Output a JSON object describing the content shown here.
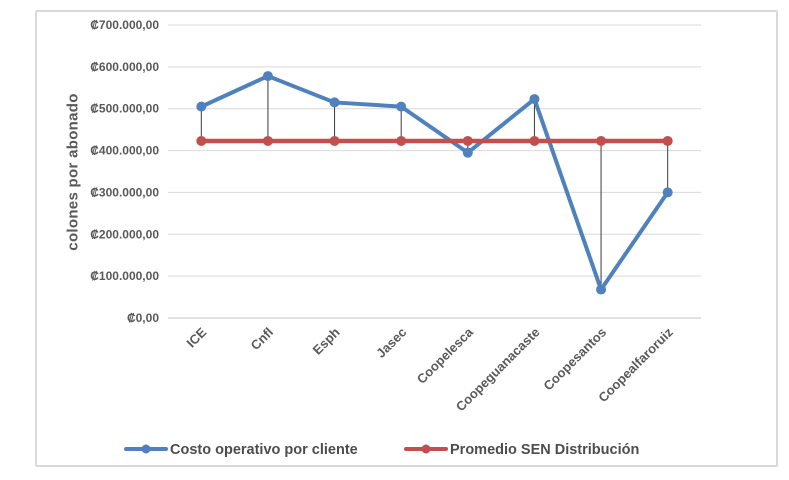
{
  "chart_data": {
    "type": "line",
    "title": "",
    "xlabel": "",
    "ylabel": "colones por abonado",
    "categories": [
      "ICE",
      "Cnfl",
      "Esph",
      "Jasec",
      "Coopelesca",
      "Coopeguanacaste",
      "Coopesantos",
      "Coopealfaroruiz"
    ],
    "series": [
      {
        "name": "Costo operativo por cliente",
        "color": "#4F81BD",
        "values": [
          505000,
          578000,
          515000,
          505000,
          395000,
          523000,
          68000,
          300000
        ]
      },
      {
        "name": "Promedio SEN Distribución",
        "color": "#C0504D",
        "values": [
          423000,
          423000,
          423000,
          423000,
          423000,
          423000,
          423000,
          423000
        ]
      }
    ],
    "ylim": [
      0,
      700000
    ],
    "y_tick_values": [
      700000,
      600000,
      500000,
      400000,
      300000,
      200000,
      100000,
      0
    ],
    "y_tick_labels": [
      "₡700.000,00",
      "₡600.000,00",
      "₡500.000,00",
      "₡400.000,00",
      "₡300.000,00",
      "₡200.000,00",
      "₡100.000,00",
      "₡0,00"
    ],
    "grid": true,
    "high_low_lines": true,
    "legend_position": "bottom",
    "colors": {
      "grid": "#d9d9d9",
      "axis": "#c6c6c6",
      "text": "#595959",
      "drop_line": "#3a3a3a",
      "frame_border": "#d9d9d9"
    }
  }
}
